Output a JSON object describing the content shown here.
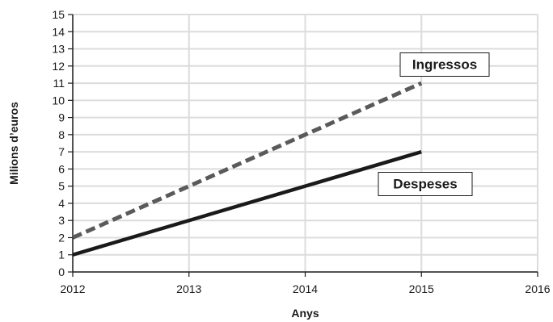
{
  "chart_data": {
    "type": "line",
    "xlabel": "Anys",
    "ylabel": "Milions d’euros",
    "xlim": [
      2012,
      2016
    ],
    "ylim": [
      0,
      15
    ],
    "x_ticks": [
      2012,
      2013,
      2014,
      2015,
      2016
    ],
    "y_ticks": [
      0,
      1,
      2,
      3,
      4,
      5,
      6,
      7,
      8,
      9,
      10,
      11,
      12,
      13,
      14,
      15
    ],
    "grid": true,
    "series": [
      {
        "name": "Ingressos",
        "x": [
          2012,
          2015
        ],
        "y": [
          2,
          11
        ],
        "style": "dashed",
        "color": "#5a5a5a"
      },
      {
        "name": "Despeses",
        "x": [
          2012,
          2015
        ],
        "y": [
          1,
          7
        ],
        "style": "solid",
        "color": "#1a1a1a"
      }
    ]
  }
}
